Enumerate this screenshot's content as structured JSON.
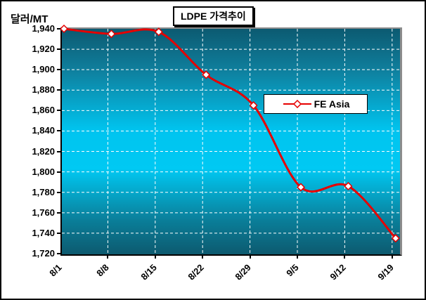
{
  "chart": {
    "title": "LDPE 가격추이",
    "y_axis_title": "달러/MT",
    "legend": {
      "label": "FE Asia"
    }
  },
  "chart_data": {
    "type": "line",
    "title": "LDPE 가격추이",
    "ylabel": "달러/MT",
    "xlabel": "",
    "categories": [
      "8/1",
      "8/8",
      "8/15",
      "8/22",
      "8/29",
      "9/5",
      "9/12",
      "9/19"
    ],
    "series": [
      {
        "name": "FE Asia",
        "values": [
          1940,
          1935,
          1937,
          1895,
          1865,
          1785,
          1786,
          1735
        ]
      }
    ],
    "ylim": [
      1720,
      1940
    ],
    "ytick_step": 20,
    "grid": true,
    "line_smoothing": true,
    "legend_position": "center-right",
    "marker": "open-diamond",
    "colors": {
      "line": "#e60000",
      "marker_fill": "#ffffff",
      "marker_border": "#e60000",
      "gridline": "#ffffff",
      "plot_gradient_edge": "#0c5a71",
      "plot_gradient_center": "#00c9f3",
      "axis": "#000000",
      "plot_border_shadow": "#8c8c8c"
    }
  }
}
